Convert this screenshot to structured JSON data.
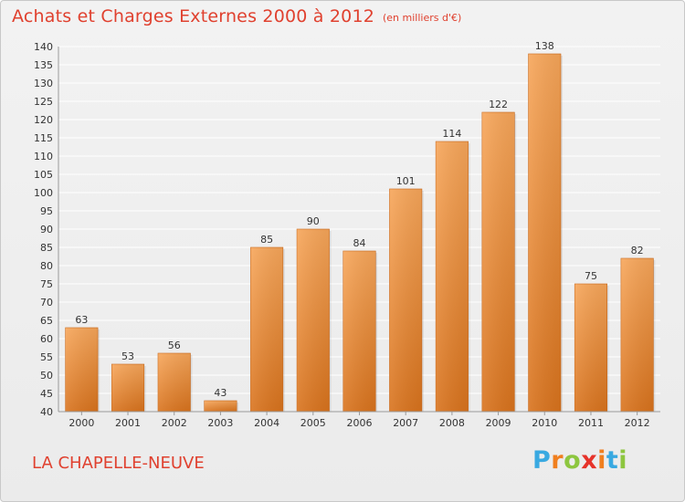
{
  "header": {
    "title": "Achats et Charges Externes 2000 à 2012",
    "subtitle": "(en milliers d'€)"
  },
  "footer": {
    "commune": "LA CHAPELLE-NEUVE",
    "logo_letters": [
      "P",
      "r",
      "o",
      "x",
      "i",
      "t",
      "i"
    ],
    "logo_colors": [
      "#39a9e1",
      "#f07f1f",
      "#8dc63f",
      "#e6332a",
      "#f07f1f",
      "#39a9e1",
      "#8dc63f"
    ]
  },
  "colors": {
    "bar_top": "#f7a65a",
    "bar_bottom": "#d9731d",
    "grid": "#ffffff",
    "title": "#e0412f"
  },
  "chart_data": {
    "type": "bar",
    "title": "Achats et Charges Externes 2000 à 2012",
    "subtitle": "(en milliers d'€)",
    "xlabel": "",
    "ylabel": "",
    "categories": [
      "2000",
      "2001",
      "2002",
      "2003",
      "2004",
      "2005",
      "2006",
      "2007",
      "2008",
      "2009",
      "2010",
      "2011",
      "2012"
    ],
    "values": [
      63,
      53,
      56,
      43,
      85,
      90,
      84,
      101,
      114,
      122,
      138,
      75,
      82
    ],
    "ylim": [
      40,
      140
    ],
    "ytick_step": 5,
    "grid": true,
    "data_labels": true
  }
}
